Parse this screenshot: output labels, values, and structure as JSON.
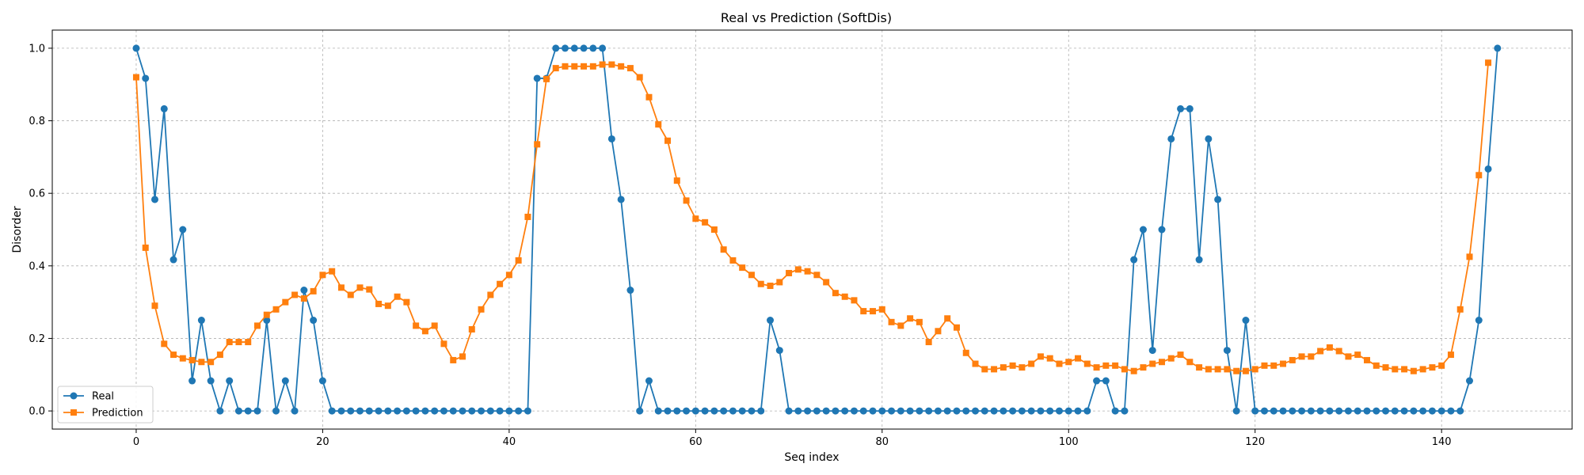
{
  "chart_data": {
    "type": "line",
    "title": "Real vs Prediction (SoftDis)",
    "xlabel": "Seq index",
    "ylabel": "Disorder",
    "xlim": [
      -9,
      154
    ],
    "ylim": [
      -0.05,
      1.05
    ],
    "xticks": [
      0,
      20,
      40,
      60,
      80,
      100,
      120,
      140
    ],
    "yticks": [
      0.0,
      0.2,
      0.4,
      0.6,
      0.8,
      1.0
    ],
    "ytick_labels": [
      "0.0",
      "0.2",
      "0.4",
      "0.6",
      "0.8",
      "1.0"
    ],
    "grid": true,
    "legend_position": "lower-left",
    "series": [
      {
        "name": "Real",
        "color": "#1f77b4",
        "marker": "circle",
        "values": [
          1.0,
          0.917,
          0.583,
          0.833,
          0.417,
          0.5,
          0.083,
          0.25,
          0.083,
          0.0,
          0.083,
          0.0,
          0.0,
          0.0,
          0.25,
          0.0,
          0.083,
          0.0,
          0.333,
          0.25,
          0.083,
          0.0,
          0.0,
          0.0,
          0.0,
          0.0,
          0.0,
          0.0,
          0.0,
          0.0,
          0.0,
          0.0,
          0.0,
          0.0,
          0.0,
          0.0,
          0.0,
          0.0,
          0.0,
          0.0,
          0.0,
          0.0,
          0.0,
          0.917,
          0.917,
          1.0,
          1.0,
          1.0,
          1.0,
          1.0,
          1.0,
          0.75,
          0.583,
          0.333,
          0.0,
          0.083,
          0.0,
          0.0,
          0.0,
          0.0,
          0.0,
          0.0,
          0.0,
          0.0,
          0.0,
          0.0,
          0.0,
          0.0,
          0.25,
          0.167,
          0.0,
          0.0,
          0.0,
          0.0,
          0.0,
          0.0,
          0.0,
          0.0,
          0.0,
          0.0,
          0.0,
          0.0,
          0.0,
          0.0,
          0.0,
          0.0,
          0.0,
          0.0,
          0.0,
          0.0,
          0.0,
          0.0,
          0.0,
          0.0,
          0.0,
          0.0,
          0.0,
          0.0,
          0.0,
          0.0,
          0.0,
          0.0,
          0.0,
          0.083,
          0.083,
          0.0,
          0.0,
          0.417,
          0.5,
          0.167,
          0.5,
          0.75,
          0.833,
          0.833,
          0.417,
          0.75,
          0.583,
          0.167,
          0.0,
          0.25,
          0.0,
          0.0,
          0.0,
          0.0,
          0.0,
          0.0,
          0.0,
          0.0,
          0.0,
          0.0,
          0.0,
          0.0,
          0.0,
          0.0,
          0.0,
          0.0,
          0.0,
          0.0,
          0.0,
          0.0,
          0.0,
          0.0,
          0.0,
          0.083,
          0.25,
          0.667,
          1.0
        ]
      },
      {
        "name": "Prediction",
        "color": "#ff7f0e",
        "marker": "square",
        "values": [
          0.92,
          0.45,
          0.29,
          0.185,
          0.155,
          0.145,
          0.14,
          0.135,
          0.135,
          0.155,
          0.19,
          0.19,
          0.19,
          0.235,
          0.265,
          0.28,
          0.3,
          0.32,
          0.31,
          0.33,
          0.375,
          0.385,
          0.34,
          0.32,
          0.34,
          0.335,
          0.295,
          0.29,
          0.315,
          0.3,
          0.235,
          0.22,
          0.235,
          0.185,
          0.14,
          0.15,
          0.225,
          0.28,
          0.32,
          0.35,
          0.375,
          0.415,
          0.535,
          0.735,
          0.915,
          0.945,
          0.95,
          0.95,
          0.95,
          0.95,
          0.955,
          0.955,
          0.95,
          0.945,
          0.92,
          0.865,
          0.79,
          0.745,
          0.635,
          0.58,
          0.53,
          0.52,
          0.5,
          0.445,
          0.415,
          0.395,
          0.375,
          0.35,
          0.345,
          0.355,
          0.38,
          0.39,
          0.385,
          0.375,
          0.355,
          0.325,
          0.315,
          0.305,
          0.275,
          0.275,
          0.28,
          0.245,
          0.235,
          0.255,
          0.245,
          0.19,
          0.22,
          0.255,
          0.23,
          0.16,
          0.13,
          0.115,
          0.115,
          0.12,
          0.125,
          0.12,
          0.13,
          0.15,
          0.145,
          0.13,
          0.135,
          0.145,
          0.13,
          0.12,
          0.125,
          0.125,
          0.115,
          0.11,
          0.12,
          0.13,
          0.135,
          0.145,
          0.155,
          0.135,
          0.12,
          0.115,
          0.115,
          0.115,
          0.11,
          0.11,
          0.115,
          0.125,
          0.125,
          0.13,
          0.14,
          0.15,
          0.15,
          0.165,
          0.175,
          0.165,
          0.15,
          0.155,
          0.14,
          0.125,
          0.12,
          0.115,
          0.115,
          0.11,
          0.115,
          0.12,
          0.125,
          0.155,
          0.28,
          0.425,
          0.65,
          0.96
        ]
      }
    ]
  }
}
